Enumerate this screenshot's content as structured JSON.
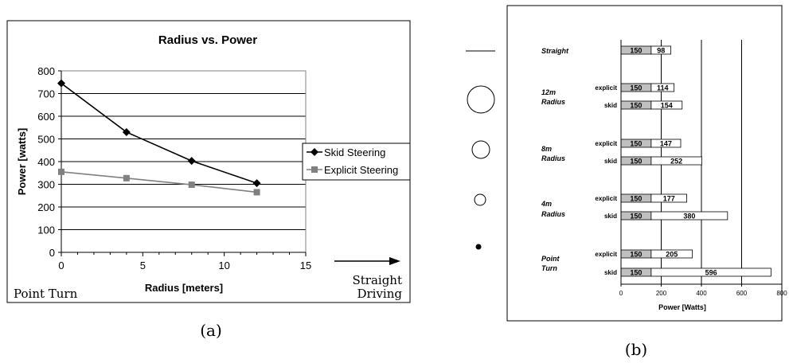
{
  "chart_data": [
    {
      "panel_label": "(a)",
      "type": "line",
      "title": "Radius vs. Power",
      "xlabel": "Radius [meters]",
      "ylabel": "Power [watts]",
      "xlim": [
        0,
        15
      ],
      "ylim": [
        0,
        800
      ],
      "xticks": [
        "0",
        "5",
        "10",
        "15"
      ],
      "yticks": [
        "0",
        "100",
        "200",
        "300",
        "400",
        "500",
        "600",
        "700",
        "800"
      ],
      "grid": true,
      "legend_position": "right",
      "series": [
        {
          "name": "Skid Steering",
          "color": "#000000",
          "marker": "diamond",
          "x": [
            0,
            4,
            8,
            12
          ],
          "y": [
            745,
            530,
            403,
            305
          ]
        },
        {
          "name": "Explicit Steering",
          "color": "#808080",
          "marker": "square",
          "x": [
            0,
            4,
            8,
            12
          ],
          "y": [
            355,
            327,
            298,
            265
          ]
        }
      ],
      "annotations": {
        "left": "Point Turn",
        "right_line1": "Straight",
        "right_line2": "Driving"
      }
    },
    {
      "panel_label": "(b)",
      "type": "bar",
      "orientation": "horizontal",
      "stacked": true,
      "xlabel": "Power [Watts]",
      "xlim": [
        0,
        800
      ],
      "xticks": [
        "0",
        "200",
        "400",
        "600",
        "800"
      ],
      "grid": true,
      "segment_colors": {
        "base": "#c0c0c0",
        "extra": "#ffffff"
      },
      "groups": [
        {
          "label1": "Straight",
          "label2": "",
          "bars": [
            {
              "sub": "",
              "base": 150,
              "extra": 98
            }
          ]
        },
        {
          "label1": "12m",
          "label2": "Radius",
          "bars": [
            {
              "sub": "explicit",
              "base": 150,
              "extra": 114
            },
            {
              "sub": "skid",
              "base": 150,
              "extra": 154
            }
          ]
        },
        {
          "label1": "8m",
          "label2": "Radius",
          "bars": [
            {
              "sub": "explicit",
              "base": 150,
              "extra": 147
            },
            {
              "sub": "skid",
              "base": 150,
              "extra": 252
            }
          ]
        },
        {
          "label1": "4m",
          "label2": "Radius",
          "bars": [
            {
              "sub": "explicit",
              "base": 150,
              "extra": 177
            },
            {
              "sub": "skid",
              "base": 150,
              "extra": 380
            }
          ]
        },
        {
          "label1": "Point",
          "label2": "Turn",
          "bars": [
            {
              "sub": "explicit",
              "base": 150,
              "extra": 205
            },
            {
              "sub": "skid",
              "base": 150,
              "extra": 596
            }
          ]
        }
      ],
      "path_icons": [
        "line",
        "circle-large",
        "circle-medium",
        "circle-small",
        "dot"
      ]
    }
  ]
}
